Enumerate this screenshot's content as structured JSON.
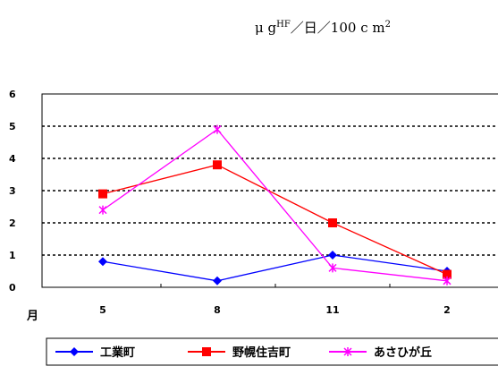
{
  "chart_data": {
    "type": "line",
    "unit": {
      "prefix": "μ g",
      "sup_hf": "HF",
      "rest": "／日／100 c m",
      "sup_2": "2"
    },
    "xunit": "月",
    "categories": [
      "5",
      "8",
      "11",
      "2"
    ],
    "ylim": [
      0,
      6
    ],
    "yticks": [
      "0",
      "1",
      "2",
      "3",
      "4",
      "5",
      "6"
    ],
    "grid": "dotted horizontal",
    "legend_position": "bottom",
    "series": [
      {
        "name": "工業町",
        "values": [
          0.8,
          0.2,
          1.0,
          0.5
        ],
        "color": "#0000ff",
        "marker": "diamond"
      },
      {
        "name": "野幌住吉町",
        "values": [
          2.9,
          3.8,
          2.0,
          0.4
        ],
        "color": "#ff0000",
        "marker": "square"
      },
      {
        "name": "あさひが丘",
        "values": [
          2.4,
          4.9,
          0.6,
          0.2
        ],
        "color": "#ff00ff",
        "marker": "x"
      }
    ]
  }
}
